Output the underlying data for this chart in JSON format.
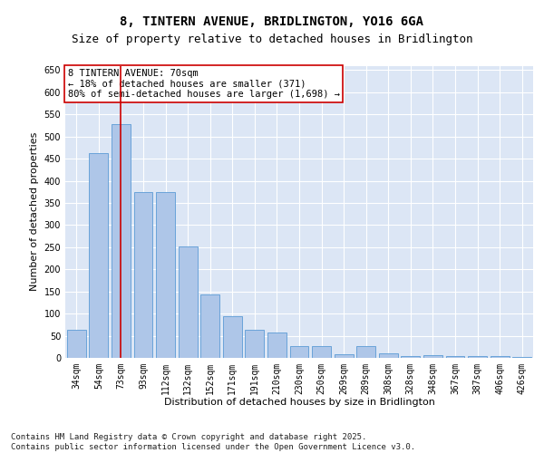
{
  "title": "8, TINTERN AVENUE, BRIDLINGTON, YO16 6GA",
  "subtitle": "Size of property relative to detached houses in Bridlington",
  "xlabel": "Distribution of detached houses by size in Bridlington",
  "ylabel": "Number of detached properties",
  "categories": [
    "34sqm",
    "54sqm",
    "73sqm",
    "93sqm",
    "112sqm",
    "132sqm",
    "152sqm",
    "171sqm",
    "191sqm",
    "210sqm",
    "230sqm",
    "250sqm",
    "269sqm",
    "289sqm",
    "308sqm",
    "328sqm",
    "348sqm",
    "367sqm",
    "387sqm",
    "406sqm",
    "426sqm"
  ],
  "values": [
    63,
    463,
    528,
    375,
    375,
    251,
    143,
    95,
    63,
    57,
    27,
    27,
    8,
    27,
    11,
    5,
    7,
    5,
    5,
    5,
    3
  ],
  "bar_color": "#aec6e8",
  "bar_edge_color": "#5b9bd5",
  "vline_x": 2,
  "vline_color": "#cc0000",
  "annotation_line1": "8 TINTERN AVENUE: 70sqm",
  "annotation_line2": "← 18% of detached houses are smaller (371)",
  "annotation_line3": "80% of semi-detached houses are larger (1,698) →",
  "annotation_box_color": "#ffffff",
  "annotation_box_edge_color": "#cc0000",
  "ylim": [
    0,
    660
  ],
  "background_color": "#dce6f5",
  "grid_color": "#ffffff",
  "footer_text": "Contains HM Land Registry data © Crown copyright and database right 2025.\nContains public sector information licensed under the Open Government Licence v3.0.",
  "title_fontsize": 10,
  "subtitle_fontsize": 9,
  "xlabel_fontsize": 8,
  "ylabel_fontsize": 8,
  "tick_fontsize": 7,
  "annotation_fontsize": 7.5,
  "footer_fontsize": 6.5,
  "fig_bg": "#ffffff"
}
